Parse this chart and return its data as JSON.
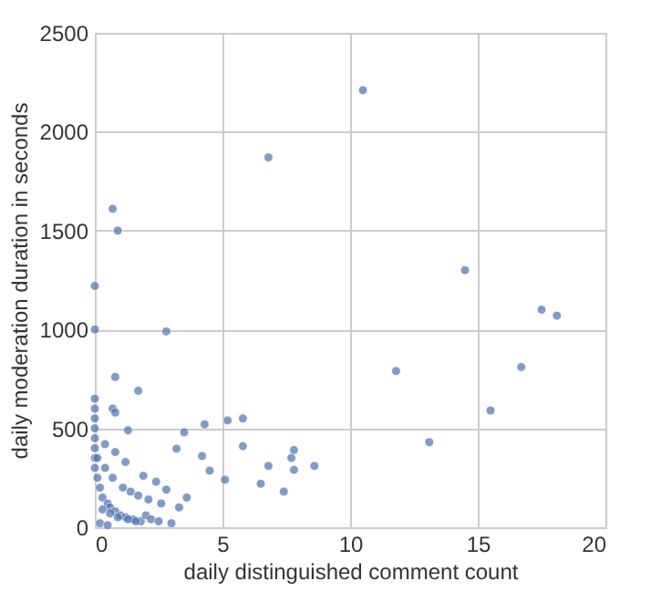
{
  "chart_data": {
    "type": "scatter",
    "xlabel": "daily distinguished comment count",
    "ylabel": "daily moderation duration in seconds",
    "x": [
      10.5,
      6.8,
      0.7,
      0.9,
      0,
      0,
      14.5,
      17.5,
      18.1,
      11.8,
      16.7,
      15.5,
      13.1,
      2.8,
      1.7,
      0.7,
      4.3,
      5.2,
      5.8,
      3.5,
      0.8,
      0.8,
      1.3,
      5.8,
      7.8,
      7.7,
      8.6,
      6.8,
      7.8,
      6.5,
      7.4,
      5.1,
      4.2,
      3.2,
      4.5,
      0,
      0,
      0,
      0,
      0,
      0,
      0,
      0,
      0.1,
      0.2,
      0.3,
      0.5,
      0.6,
      0.8,
      1,
      1.2,
      1.5,
      1.8,
      2,
      2.2,
      2.5,
      3,
      0.4,
      0.7,
      1.1,
      1.4,
      1.7,
      2.1,
      2.6,
      3.3,
      0.3,
      0.6,
      0.9,
      1.3,
      1.6,
      0.2,
      0.5,
      2.4,
      2.8,
      3.6,
      1.9,
      0.1,
      0.4,
      0.8,
      1.2
    ],
    "values": [
      2210,
      1870,
      1610,
      1500,
      1220,
      1000,
      1300,
      1100,
      1070,
      790,
      810,
      590,
      430,
      990,
      690,
      600,
      520,
      540,
      550,
      480,
      760,
      580,
      490,
      410,
      390,
      350,
      310,
      310,
      290,
      220,
      180,
      240,
      360,
      397,
      286,
      650,
      600,
      550,
      500,
      450,
      400,
      350,
      300,
      250,
      200,
      150,
      120,
      100,
      80,
      60,
      50,
      40,
      30,
      60,
      40,
      30,
      20,
      300,
      250,
      200,
      180,
      160,
      140,
      120,
      100,
      90,
      70,
      50,
      40,
      30,
      20,
      10,
      230,
      190,
      150,
      260,
      350,
      420,
      380,
      330
    ],
    "color": "#4c72b0",
    "marker": "circle",
    "xlim": [
      0,
      20
    ],
    "ylim": [
      0,
      2500
    ],
    "xticks": [
      0,
      5,
      10,
      15,
      20
    ],
    "yticks": [
      0,
      500,
      1000,
      1500,
      2000,
      2500
    ],
    "grid": true
  }
}
